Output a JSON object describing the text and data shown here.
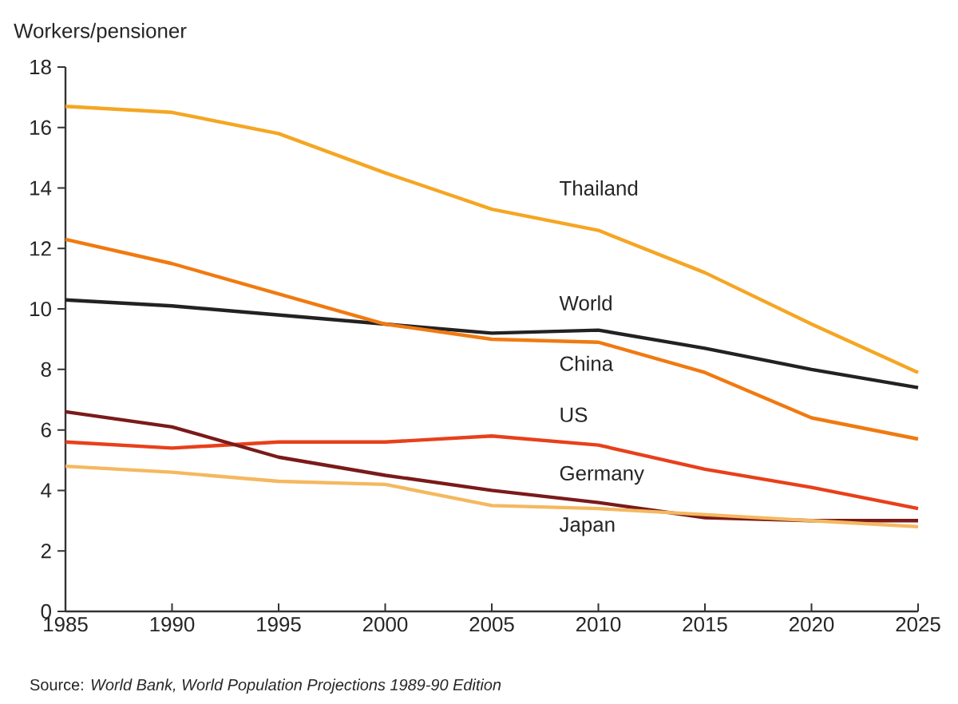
{
  "chart_data": {
    "type": "line",
    "ylabel": "Workers/pensioner",
    "annotations": [
      "Source: *World Bank, World Population Projections 1989-90 Edition*"
    ],
    "x": [
      1985,
      1990,
      1995,
      2000,
      2005,
      2010,
      2015,
      2020,
      2025
    ],
    "xlim": [
      1985,
      2025
    ],
    "xticks": [
      1985,
      1990,
      1995,
      2000,
      2005,
      2010,
      2015,
      2020,
      2025
    ],
    "ylim": [
      0,
      18
    ],
    "yticks": [
      0,
      2,
      4,
      6,
      8,
      10,
      12,
      14,
      16,
      18
    ],
    "grid": false,
    "legend": false,
    "marker": "none",
    "line_style": "solid",
    "series": [
      {
        "name": "Thailand",
        "color": "#f5a623",
        "values": [
          16.7,
          16.5,
          15.8,
          14.5,
          13.3,
          12.6,
          11.2,
          9.5,
          7.9
        ]
      },
      {
        "name": "World",
        "color": "#222222",
        "values": [
          10.3,
          10.1,
          9.8,
          9.5,
          9.2,
          9.3,
          8.7,
          8.0,
          7.4
        ]
      },
      {
        "name": "China",
        "color": "#f07a10",
        "values": [
          12.3,
          11.5,
          10.5,
          9.5,
          9.0,
          8.9,
          7.9,
          6.4,
          5.7
        ]
      },
      {
        "name": "US",
        "color": "#e8401a",
        "values": [
          5.6,
          5.4,
          5.6,
          5.6,
          5.8,
          5.5,
          4.7,
          4.1,
          3.4
        ]
      },
      {
        "name": "Germany",
        "color": "#7a1a1a",
        "values": [
          6.6,
          6.1,
          5.1,
          4.5,
          4.0,
          3.6,
          3.1,
          3.0,
          3.0
        ]
      },
      {
        "name": "Japan",
        "color": "#f5b860",
        "values": [
          4.8,
          4.6,
          4.3,
          4.2,
          3.5,
          3.4,
          3.2,
          3.0,
          2.8
        ]
      }
    ]
  }
}
